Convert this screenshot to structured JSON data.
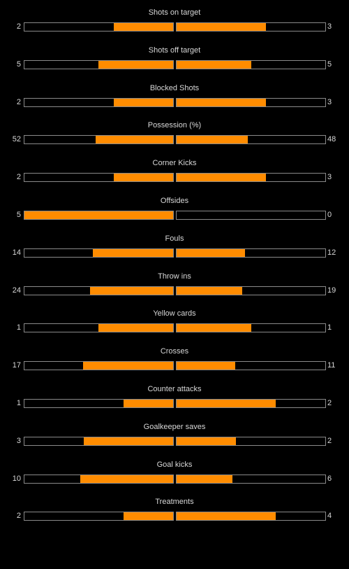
{
  "colors": {
    "background": "#000000",
    "bar_fill": "#ff8c00",
    "bar_border": "#8a8a8a",
    "text": "#d8d8d8"
  },
  "chart_data": {
    "type": "bar",
    "orientation": "horizontal-diverging",
    "categories": [
      "Shots on target",
      "Shots off target",
      "Blocked Shots",
      "Possession (%)",
      "Corner Kicks",
      "Offsides",
      "Fouls",
      "Throw ins",
      "Yellow cards",
      "Crosses",
      "Counter attacks",
      "Goalkeeper saves",
      "Goal kicks",
      "Treatments"
    ],
    "home": [
      "2",
      "5",
      "2",
      "52",
      "2",
      "5",
      "14",
      "24",
      "1",
      "17",
      "1",
      "3",
      "10",
      "2"
    ],
    "away": [
      "3",
      "5",
      "3",
      "48",
      "3",
      "0",
      "12",
      "19",
      "1",
      "11",
      "2",
      "2",
      "6",
      "4"
    ]
  }
}
